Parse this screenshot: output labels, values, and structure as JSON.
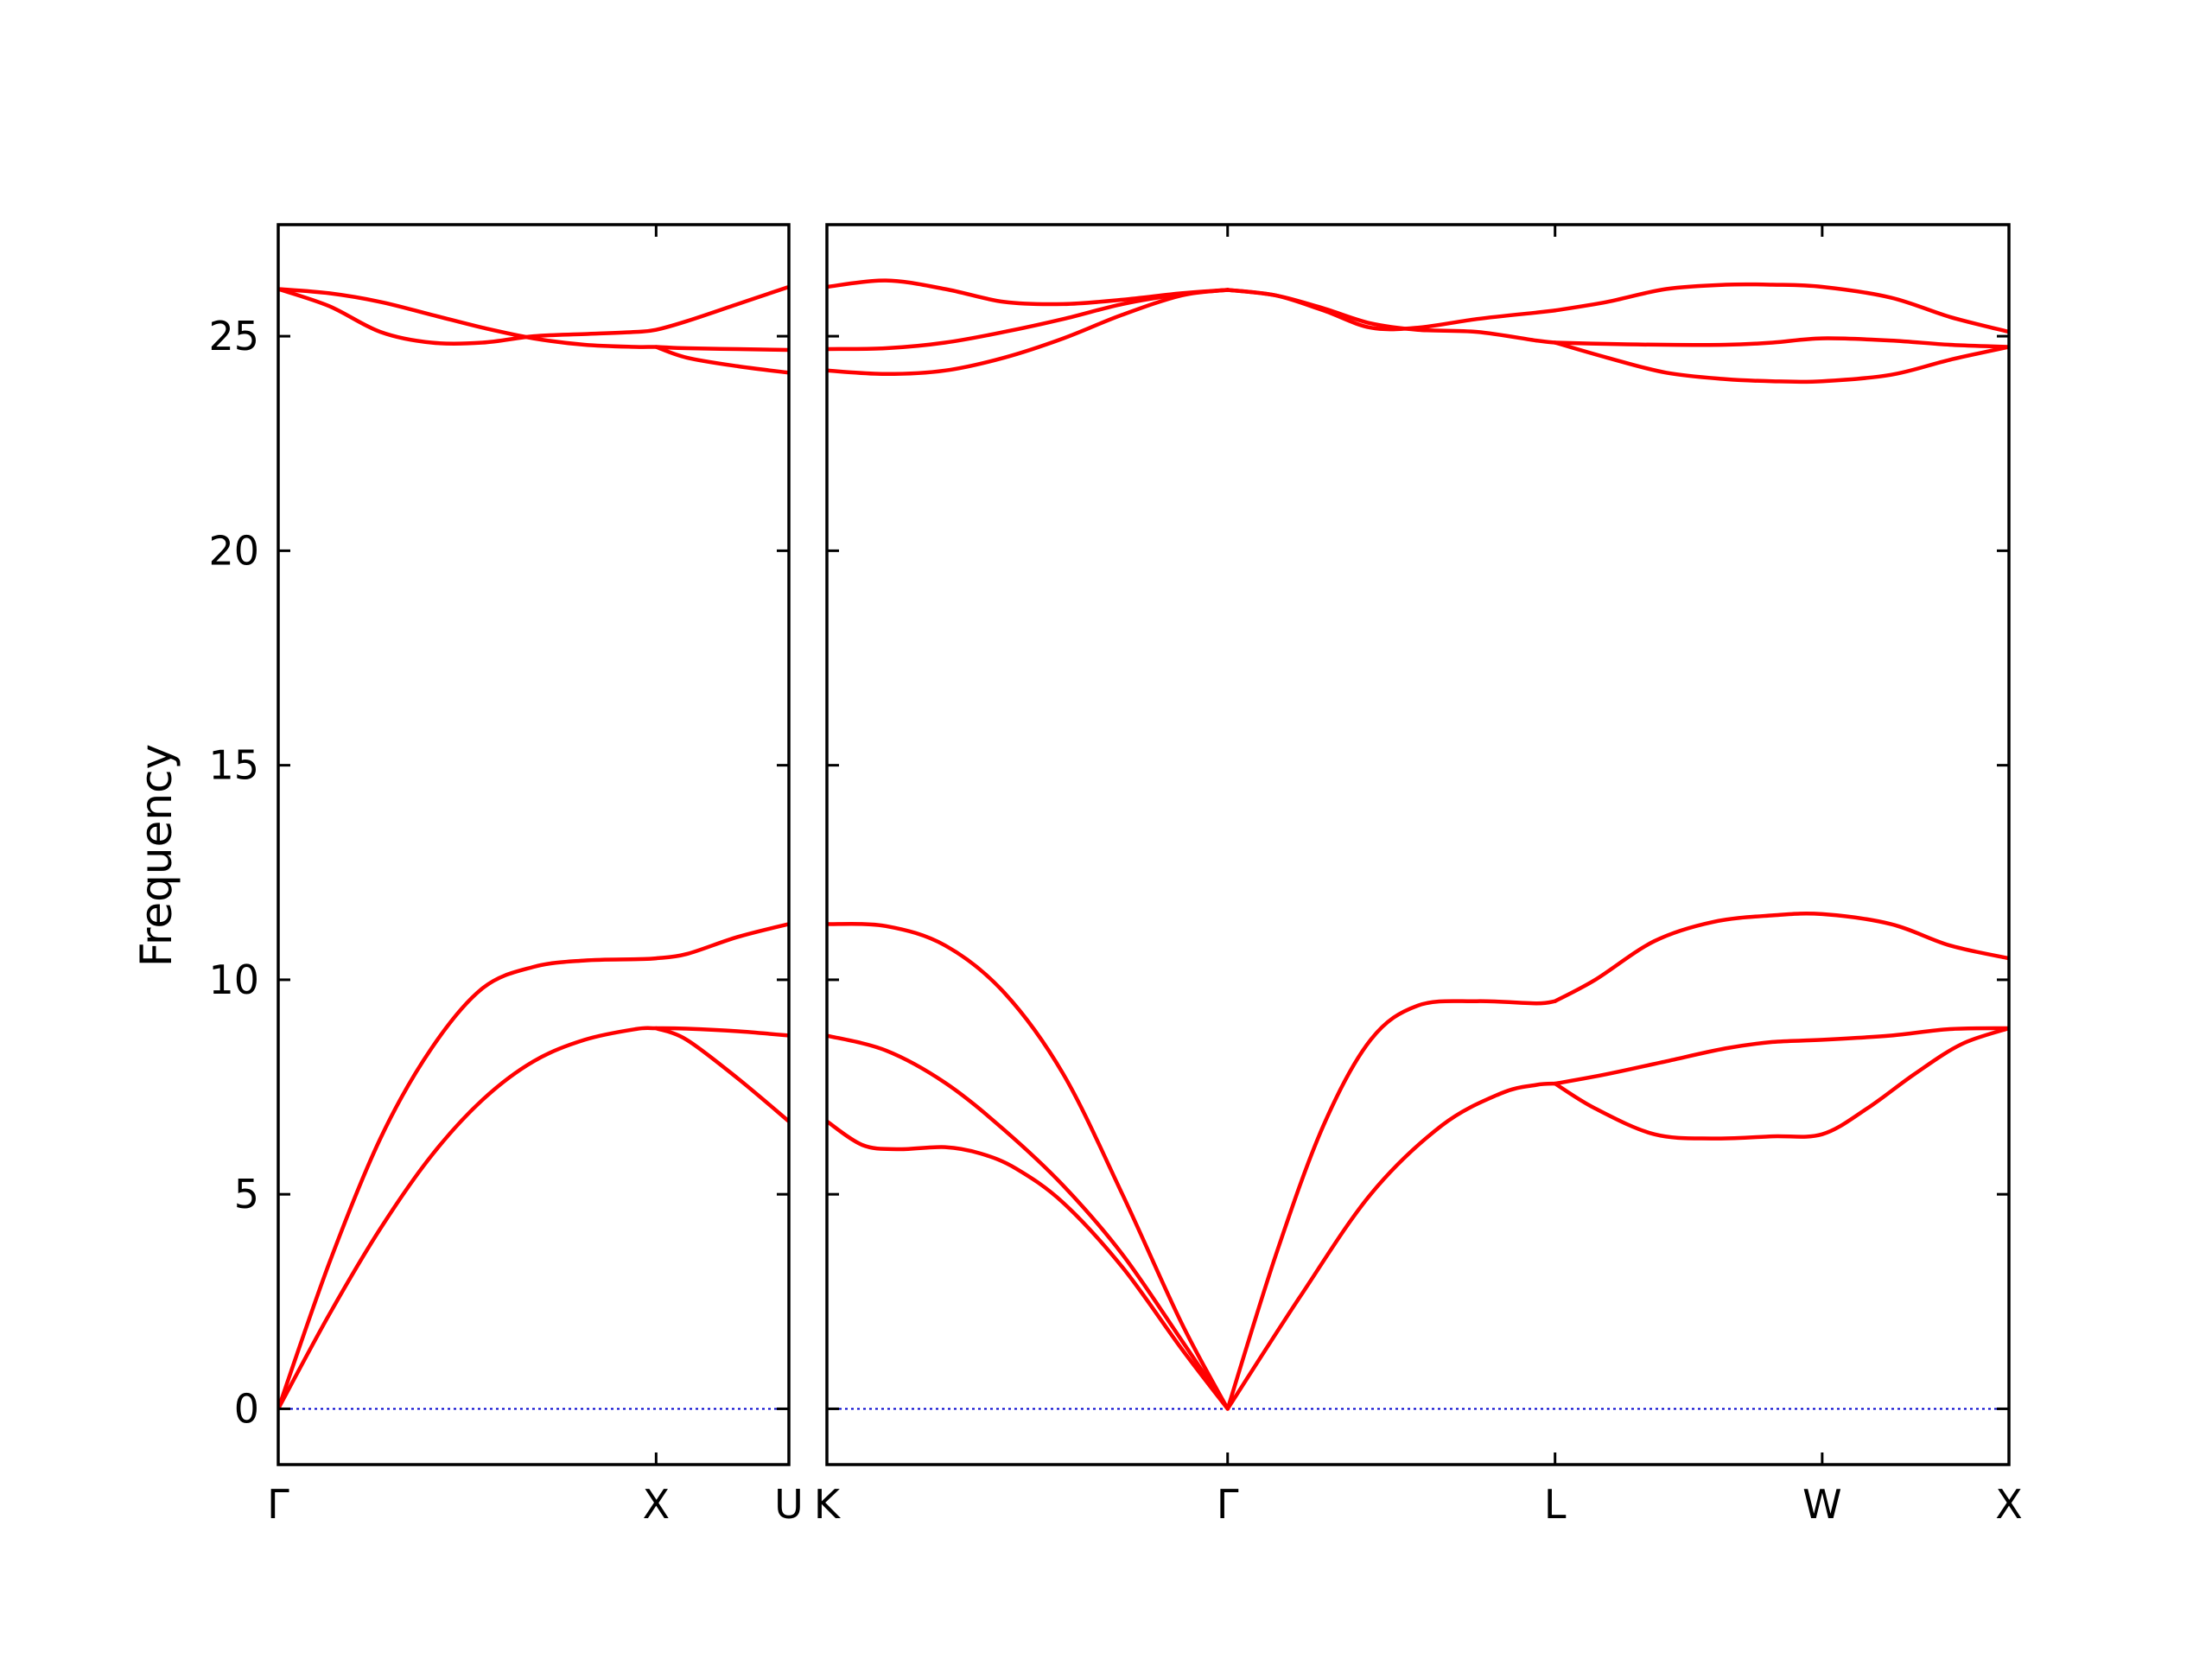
{
  "chart_data": {
    "type": "line",
    "title": "",
    "ylabel": "Frequency",
    "ylim": [
      -1.3,
      27.6
    ],
    "yticks": [
      0,
      5,
      10,
      15,
      20,
      25
    ],
    "yticklabels": [
      "0",
      "5",
      "10",
      "15",
      "20",
      "25"
    ],
    "line_color": "#ff0000",
    "zero_line_color": "#0000cc",
    "panels": [
      {
        "x_range": [
          0,
          1
        ],
        "ticks": [
          {
            "x": 0,
            "label": "Γ"
          },
          {
            "x": 0.74,
            "label": "X"
          },
          {
            "x": 1,
            "label": "U"
          }
        ],
        "series": [
          {
            "x": [
              0,
              0.1,
              0.2,
              0.3,
              0.4,
              0.5,
              0.6,
              0.7,
              0.74,
              0.8,
              0.9,
              1.0
            ],
            "y": [
              0,
              3.4,
              6.3,
              8.4,
              9.8,
              10.3,
              10.45,
              10.48,
              10.5,
              10.6,
              11.0,
              11.3
            ]
          },
          {
            "x": [
              0,
              0.1,
              0.2,
              0.3,
              0.4,
              0.5,
              0.6,
              0.7,
              0.74,
              0.8,
              0.9,
              1.0
            ],
            "y": [
              0,
              2.2,
              4.2,
              5.9,
              7.2,
              8.1,
              8.6,
              8.85,
              8.87,
              8.86,
              8.8,
              8.7
            ]
          },
          {
            "x": [
              0.74,
              0.8,
              0.9,
              1.0
            ],
            "y": [
              8.87,
              8.6,
              7.7,
              6.7
            ]
          },
          {
            "x": [
              0,
              0.1,
              0.2,
              0.3,
              0.4,
              0.5,
              0.6,
              0.7,
              0.74,
              0.8,
              0.9,
              1.0
            ],
            "y": [
              26.1,
              25.7,
              25.1,
              24.85,
              24.85,
              25.0,
              25.05,
              25.1,
              25.15,
              25.35,
              25.75,
              26.15
            ]
          },
          {
            "x": [
              0,
              0.1,
              0.2,
              0.3,
              0.4,
              0.5,
              0.6,
              0.7,
              0.74,
              0.8,
              0.9,
              1.0
            ],
            "y": [
              26.1,
              26.0,
              25.8,
              25.5,
              25.2,
              24.95,
              24.8,
              24.75,
              24.75,
              24.72,
              24.7,
              24.68
            ]
          },
          {
            "x": [
              0.74,
              0.8,
              0.9,
              1.0
            ],
            "y": [
              24.75,
              24.5,
              24.3,
              24.15
            ]
          }
        ]
      },
      {
        "x_range": [
          0,
          1
        ],
        "ticks": [
          {
            "x": 0,
            "label": "K"
          },
          {
            "x": 0.339,
            "label": "Γ"
          },
          {
            "x": 0.616,
            "label": "L"
          },
          {
            "x": 0.842,
            "label": "W"
          },
          {
            "x": 1,
            "label": "X"
          }
        ],
        "series": [
          {
            "x": [
              0,
              0.05,
              0.1,
              0.15,
              0.2,
              0.25,
              0.3,
              0.339
            ],
            "y": [
              11.3,
              11.25,
              10.8,
              9.7,
              7.8,
              5.0,
              2.0,
              0
            ]
          },
          {
            "x": [
              0,
              0.05,
              0.1,
              0.15,
              0.2,
              0.25,
              0.3,
              0.339
            ],
            "y": [
              8.7,
              8.35,
              7.6,
              6.5,
              5.2,
              3.6,
              1.6,
              0
            ]
          },
          {
            "x": [
              0,
              0.03,
              0.06,
              0.1,
              0.13,
              0.16,
              0.2,
              0.25,
              0.3,
              0.339
            ],
            "y": [
              6.7,
              6.15,
              6.05,
              6.1,
              5.95,
              5.6,
              4.8,
              3.3,
              1.4,
              0
            ]
          },
          {
            "x": [
              0.339,
              0.38,
              0.42,
              0.46,
              0.5,
              0.55,
              0.6,
              0.616
            ],
            "y": [
              0,
              3.6,
              6.6,
              8.6,
              9.4,
              9.5,
              9.45,
              9.5
            ]
          },
          {
            "x": [
              0.339,
              0.4,
              0.46,
              0.52,
              0.57,
              0.6,
              0.616
            ],
            "y": [
              0,
              2.6,
              5.0,
              6.6,
              7.35,
              7.55,
              7.58
            ]
          },
          {
            "x": [
              0.616,
              0.65,
              0.7,
              0.75,
              0.8,
              0.842,
              0.9,
              0.95,
              1.0
            ],
            "y": [
              9.5,
              10.0,
              10.9,
              11.35,
              11.5,
              11.53,
              11.3,
              10.8,
              10.5
            ]
          },
          {
            "x": [
              0.616,
              0.66,
              0.71,
              0.76,
              0.8,
              0.842,
              0.9,
              0.95,
              1.0
            ],
            "y": [
              7.58,
              7.8,
              8.1,
              8.4,
              8.55,
              8.6,
              8.7,
              8.85,
              8.87
            ]
          },
          {
            "x": [
              0.616,
              0.65,
              0.7,
              0.75,
              0.8,
              0.842,
              0.88,
              0.92,
              0.96,
              1.0
            ],
            "y": [
              7.58,
              7.0,
              6.4,
              6.3,
              6.35,
              6.4,
              7.0,
              7.8,
              8.5,
              8.87
            ]
          },
          {
            "x": [
              0,
              0.05,
              0.1,
              0.15,
              0.2,
              0.25,
              0.3,
              0.339
            ],
            "y": [
              26.15,
              26.3,
              26.1,
              25.8,
              25.75,
              25.85,
              26.0,
              26.08
            ]
          },
          {
            "x": [
              0,
              0.05,
              0.1,
              0.15,
              0.2,
              0.25,
              0.3,
              0.339
            ],
            "y": [
              24.7,
              24.72,
              24.85,
              25.1,
              25.4,
              25.75,
              25.98,
              26.08
            ]
          },
          {
            "x": [
              0,
              0.05,
              0.1,
              0.15,
              0.2,
              0.25,
              0.3,
              0.339
            ],
            "y": [
              24.2,
              24.12,
              24.2,
              24.5,
              24.95,
              25.5,
              25.95,
              26.08
            ]
          },
          {
            "x": [
              0.339,
              0.38,
              0.42,
              0.46,
              0.5,
              0.55,
              0.6,
              0.616
            ],
            "y": [
              26.08,
              25.95,
              25.65,
              25.3,
              25.15,
              25.1,
              24.9,
              24.85
            ]
          },
          {
            "x": [
              0.339,
              0.38,
              0.42,
              0.46,
              0.5,
              0.55,
              0.6,
              0.616
            ],
            "y": [
              26.08,
              25.95,
              25.6,
              25.2,
              25.2,
              25.4,
              25.55,
              25.6
            ]
          },
          {
            "x": [
              0.616,
              0.66,
              0.71,
              0.76,
              0.8,
              0.842,
              0.9,
              0.95,
              1.0
            ],
            "y": [
              25.6,
              25.8,
              26.1,
              26.2,
              26.2,
              26.15,
              25.9,
              25.45,
              25.1
            ]
          },
          {
            "x": [
              0.616,
              0.66,
              0.71,
              0.76,
              0.8,
              0.842,
              0.9,
              0.95,
              1.0
            ],
            "y": [
              24.85,
              24.82,
              24.8,
              24.8,
              24.85,
              24.95,
              24.9,
              24.8,
              24.75
            ]
          },
          {
            "x": [
              0.616,
              0.66,
              0.71,
              0.76,
              0.8,
              0.842,
              0.9,
              0.95,
              1.0
            ],
            "y": [
              24.85,
              24.5,
              24.15,
              24.0,
              23.95,
              23.95,
              24.1,
              24.45,
              24.75
            ]
          }
        ]
      }
    ]
  }
}
